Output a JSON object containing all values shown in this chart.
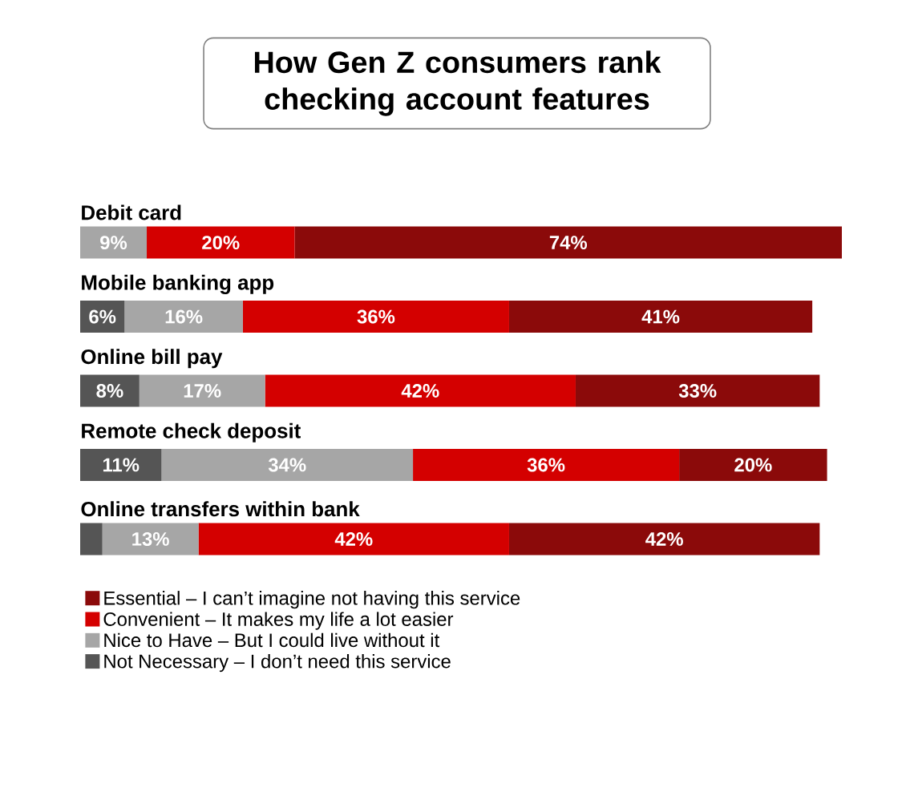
{
  "chart_data": {
    "type": "bar",
    "orientation": "horizontal",
    "stacked": true,
    "title": "How Gen Z consumers rank checking account features",
    "categories": [
      "Debit card",
      "Mobile banking app",
      "Online bill pay",
      "Remote check deposit",
      "Online transfers within bank"
    ],
    "series": [
      {
        "name": "Not Necessary – I don’t need this service",
        "color": "#555555",
        "values": [
          null,
          6,
          8,
          11,
          3
        ],
        "value_labels": [
          null,
          "6%",
          "8%",
          "11%",
          null
        ]
      },
      {
        "name": "Nice to Have – But I could live without it",
        "color": "#a6a6a6",
        "values": [
          9,
          16,
          17,
          34,
          13
        ],
        "value_labels": [
          "9%",
          "16%",
          "17%",
          "34%",
          "13%"
        ]
      },
      {
        "name": "Convenient – It makes my life a lot easier",
        "color": "#d40000",
        "values": [
          20,
          36,
          42,
          36,
          42
        ],
        "value_labels": [
          "20%",
          "36%",
          "42%",
          "36%",
          "42%"
        ]
      },
      {
        "name": "Essential – I can’t imagine not having this service",
        "color": "#8b0a0a",
        "values": [
          74,
          41,
          33,
          20,
          42
        ],
        "value_labels": [
          "74%",
          "41%",
          "33%",
          "20%",
          "42%"
        ]
      }
    ],
    "legend": "bottom left"
  }
}
